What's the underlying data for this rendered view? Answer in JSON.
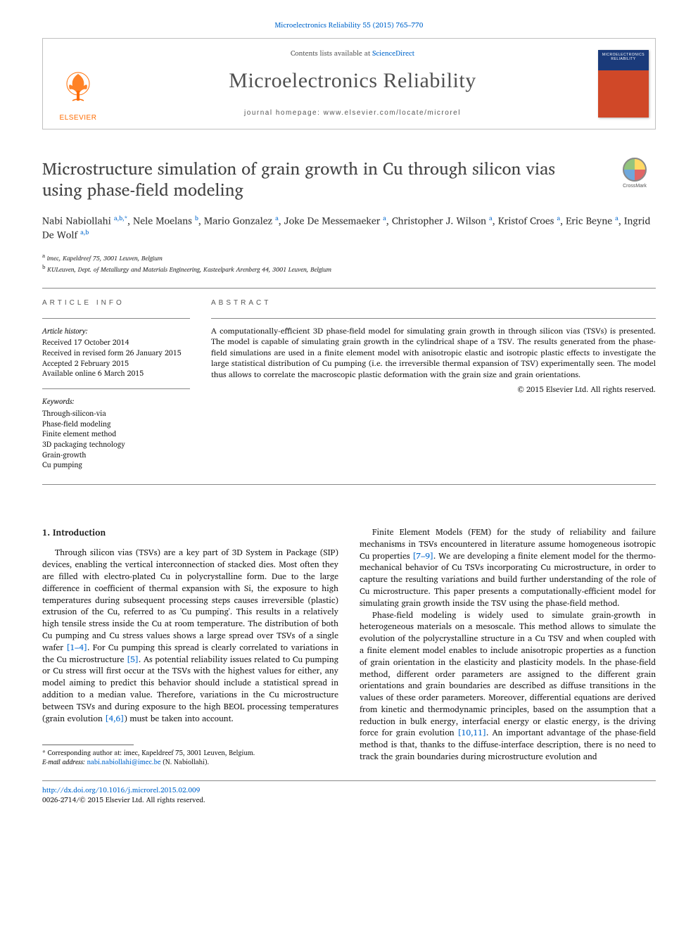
{
  "citation": {
    "text_pre": "",
    "journal_link": "Microelectronics Reliability 55 (2015) 765–770"
  },
  "header": {
    "contents_text": "Contents lists available at ",
    "contents_link": "ScienceDirect",
    "journal_name": "Microelectronics Reliability",
    "homepage_label": "journal homepage: www.elsevier.com/locate/microrel",
    "elsevier_label": "ELSEVIER",
    "cover_title": "MICROELECTRONICS RELIABILITY"
  },
  "article": {
    "title": "Microstructure simulation of grain growth in Cu through silicon vias using phase-field modeling",
    "crossmark_label": "CrossMark"
  },
  "authors": [
    {
      "name": "Nabi Nabiollahi",
      "aff": "a,b,",
      "corr": "*"
    },
    {
      "name": "Nele Moelans",
      "aff": "b",
      "corr": ""
    },
    {
      "name": "Mario Gonzalez",
      "aff": "a",
      "corr": ""
    },
    {
      "name": "Joke De Messemaeker",
      "aff": "a",
      "corr": ""
    },
    {
      "name": "Christopher J. Wilson",
      "aff": "a",
      "corr": ""
    },
    {
      "name": "Kristof Croes",
      "aff": "a",
      "corr": ""
    },
    {
      "name": "Eric Beyne",
      "aff": "a",
      "corr": ""
    },
    {
      "name": "Ingrid De Wolf",
      "aff": "a,b",
      "corr": ""
    }
  ],
  "affiliations": [
    {
      "sup": "a",
      "text": "imec, Kapeldreef 75, 3001 Leuven, Belgium"
    },
    {
      "sup": "b",
      "text": "KULeuven, Dept. of Metallurgy and Materials Engineering, Kasteelpark Arenberg 44, 3001 Leuven, Belgium"
    }
  ],
  "info": {
    "label": "ARTICLE INFO",
    "history_head": "Article history:",
    "history": [
      "Received 17 October 2014",
      "Received in revised form 26 January 2015",
      "Accepted 2 February 2015",
      "Available online 6 March 2015"
    ],
    "keywords_head": "Keywords:",
    "keywords": [
      "Through-silicon-via",
      "Phase-field modeling",
      "Finite element method",
      "3D packaging technology",
      "Grain-growth",
      "Cu pumping"
    ]
  },
  "abstract": {
    "label": "ABSTRACT",
    "text": "A computationally-efficient 3D phase-field model for simulating grain growth in through silicon vias (TSVs) is presented. The model is capable of simulating grain growth in the cylindrical shape of a TSV. The results generated from the phase-field simulations are used in a finite element model with anisotropic elastic and isotropic plastic effects to investigate the large statistical distribution of Cu pumping (i.e. the irreversible thermal expansion of TSV) experimentally seen. The model thus allows to correlate the macroscopic plastic deformation with the grain size and grain orientations.",
    "copyright": "© 2015 Elsevier Ltd. All rights reserved."
  },
  "body": {
    "section_heading": "1. Introduction",
    "col1_p1": "Through silicon vias (TSVs) are a key part of 3D System in Package (SIP) devices, enabling the vertical interconnection of stacked dies. Most often they are filled with electro-plated Cu in polycrystalline form. Due to the large difference in coefficient of thermal expansion with Si, the exposure to high temperatures during subsequent processing steps causes irreversible (plastic) extrusion of the Cu, referred to as 'Cu pumping'. This results in a relatively high tensile stress inside the Cu at room temperature. The distribution of both Cu pumping and Cu stress values shows a large spread over TSVs of a single wafer ",
    "col1_ref1": "[1–4]",
    "col1_p1b": ". For Cu pumping this spread is clearly correlated to variations in the Cu microstructure ",
    "col1_ref2": "[5]",
    "col1_p1c": ". As potential reliability issues related to Cu pumping or Cu stress will first occur at the TSVs with the highest values for either, any model aiming to predict this behavior should include a statistical spread in addition to a median value. Therefore, variations in the Cu microstructure between TSVs and during exposure to the high BEOL processing temperatures (grain evolution ",
    "col1_ref3": "[4,6]",
    "col1_p1d": ") must be taken into account.",
    "col2_p1": "Finite Element Models (FEM) for the study of reliability and failure mechanisms in TSVs encountered in literature assume homogeneous isotropic Cu properties ",
    "col2_ref1": "[7–9]",
    "col2_p1b": ". We are developing a finite element model for the thermo-mechanical behavior of Cu TSVs incorporating Cu microstructure, in order to capture the resulting variations and build further understanding of the role of Cu microstructure. This paper presents a computationally-efficient model for simulating grain growth inside the TSV using the phase-field method.",
    "col2_p2": "Phase-field modeling is widely used to simulate grain-growth in heterogeneous materials on a mesoscale. This method allows to simulate the evolution of the polycrystalline structure in a Cu TSV and when coupled with a finite element model enables to include anisotropic properties as a function of grain orientation in the elasticity and plasticity models. In the phase-field method, different order parameters are assigned to the different grain orientations and grain boundaries are described as diffuse transitions in the values of these order parameters. Moreover, differential equations are derived from kinetic and thermodynamic principles, based on the assumption that a reduction in bulk energy, interfacial energy or elastic energy, is the driving force for grain evolution ",
    "col2_ref2": "[10,11]",
    "col2_p2b": ". An important advantage of the phase-field method is that, thanks to the diffuse-interface description, there is no need to track the grain boundaries during microstructure evolution and"
  },
  "footnote": {
    "corr_label": "* Corresponding author at: imec, Kapeldreef 75, 3001 Leuven, Belgium.",
    "email_label": "E-mail address: ",
    "email": "nabi.nabiollahi@imec.be",
    "email_suffix": " (N. Nabiollahi)."
  },
  "footer": {
    "doi": "http://dx.doi.org/10.1016/j.microrel.2015.02.009",
    "issn_line": "0026-2714/© 2015 Elsevier Ltd. All rights reserved."
  },
  "colors": {
    "link": "#0066cc",
    "elsevier_orange": "#ff6c00",
    "body_text": "#1a1a1a",
    "rule": "#888888"
  }
}
